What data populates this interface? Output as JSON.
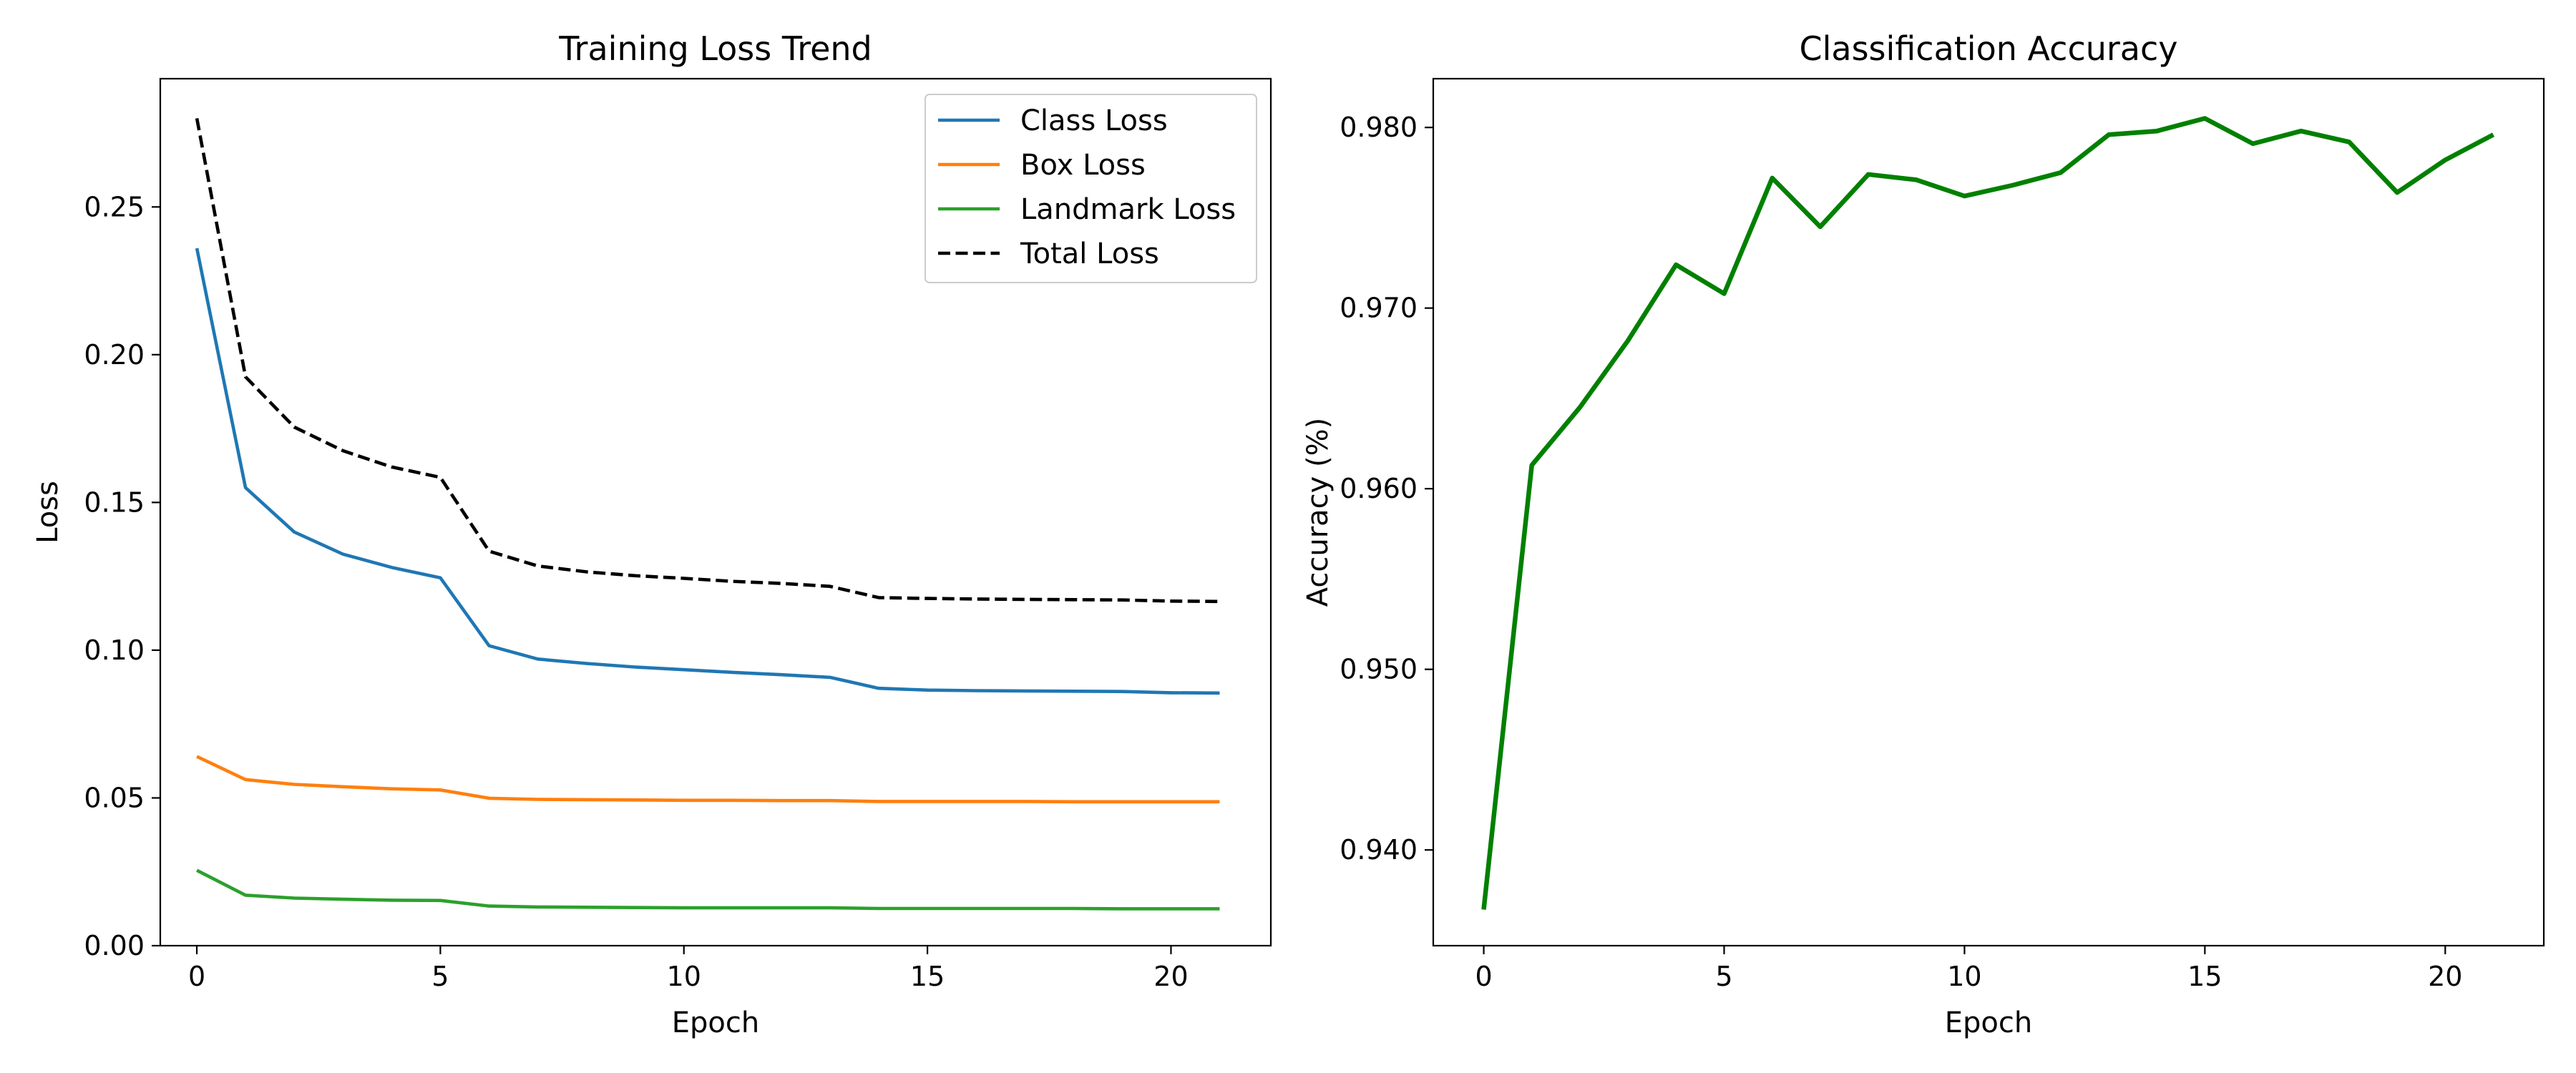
{
  "chart_data": [
    {
      "type": "line",
      "title": "Training Loss Trend",
      "xlabel": "Epoch",
      "ylabel": "Loss",
      "x": [
        0,
        1,
        2,
        3,
        4,
        5,
        6,
        7,
        8,
        9,
        10,
        11,
        12,
        13,
        14,
        15,
        16,
        17,
        18,
        19,
        20,
        21
      ],
      "xlim": [
        -0.75,
        22.05
      ],
      "ylim": [
        0,
        0.2934
      ],
      "xticks": [
        "0",
        "5",
        "10",
        "15",
        "20"
      ],
      "yticks": [
        "0.00",
        "0.05",
        "0.10",
        "0.15",
        "0.20",
        "0.25"
      ],
      "grid": false,
      "legend_position": "top-right",
      "series": [
        {
          "name": "Class Loss",
          "color": "#1f77b4",
          "dash": "solid",
          "values": [
            0.236,
            0.155,
            0.14,
            0.1325,
            0.128,
            0.1245,
            0.1015,
            0.097,
            0.0955,
            0.0943,
            0.0934,
            0.0925,
            0.0917,
            0.0908,
            0.0871,
            0.0865,
            0.0863,
            0.0862,
            0.0861,
            0.086,
            0.0856,
            0.0855
          ]
        },
        {
          "name": "Box Loss",
          "color": "#ff7f0e",
          "dash": "solid",
          "values": [
            0.064,
            0.0562,
            0.0546,
            0.0538,
            0.0531,
            0.0527,
            0.0499,
            0.0495,
            0.0494,
            0.0493,
            0.0492,
            0.0492,
            0.0491,
            0.0491,
            0.0488,
            0.0488,
            0.0488,
            0.0488,
            0.0487,
            0.0487,
            0.0487,
            0.0487
          ]
        },
        {
          "name": "Landmark Loss",
          "color": "#2ca02c",
          "dash": "solid",
          "values": [
            0.0255,
            0.0171,
            0.0161,
            0.0157,
            0.0154,
            0.0153,
            0.0134,
            0.0131,
            0.013,
            0.0129,
            0.0128,
            0.0128,
            0.0128,
            0.0128,
            0.0126,
            0.0126,
            0.0126,
            0.0126,
            0.0126,
            0.0125,
            0.0125,
            0.0125
          ]
        },
        {
          "name": "Total Loss",
          "color": "#000000",
          "dash": "dashed",
          "values": [
            0.28,
            0.1925,
            0.1755,
            0.1675,
            0.162,
            0.1585,
            0.1335,
            0.1285,
            0.1265,
            0.1252,
            0.1243,
            0.1233,
            0.1226,
            0.1216,
            0.1178,
            0.1175,
            0.1173,
            0.1172,
            0.1171,
            0.117,
            0.1166,
            0.1165
          ]
        }
      ]
    },
    {
      "type": "line",
      "title": "Classification Accuracy",
      "xlabel": "Epoch",
      "ylabel": "Accuracy (%)",
      "x": [
        0,
        1,
        2,
        3,
        4,
        5,
        6,
        7,
        8,
        9,
        10,
        11,
        12,
        13,
        14,
        15,
        16,
        17,
        18,
        19,
        20,
        21
      ],
      "xlim": [
        -1.05,
        22.05
      ],
      "ylim": [
        0.9347,
        0.9827
      ],
      "xticks": [
        "0",
        "5",
        "10",
        "15",
        "20"
      ],
      "yticks": [
        "0.940",
        "0.950",
        "0.960",
        "0.970",
        "0.980"
      ],
      "grid": false,
      "series": [
        {
          "color": "#008000",
          "dash": "solid",
          "values": [
            0.9367,
            0.9613,
            0.9645,
            0.9682,
            0.9724,
            0.9708,
            0.9772,
            0.9745,
            0.9774,
            0.9771,
            0.9762,
            0.9768,
            0.9775,
            0.9796,
            0.9798,
            0.9805,
            0.9791,
            0.9798,
            0.9792,
            0.9764,
            0.9782,
            0.9796
          ]
        }
      ]
    }
  ]
}
